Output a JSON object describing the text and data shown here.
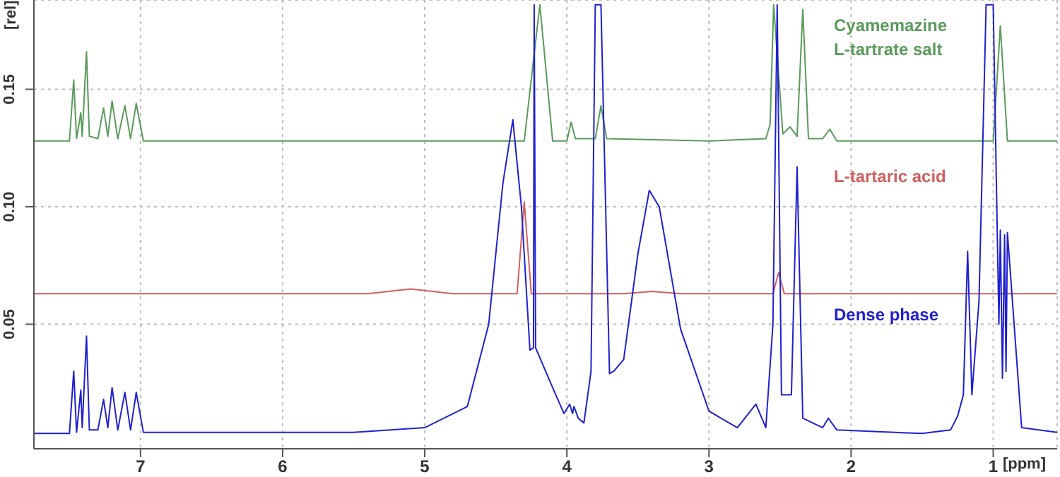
{
  "chart_data": {
    "type": "line",
    "xlabel": "[ppm]",
    "ylabel": "[rel]",
    "xlim": [
      7.75,
      0.55
    ],
    "xticks": [
      7,
      6,
      5,
      4,
      3,
      2,
      1
    ],
    "ylim": [
      -0.003,
      0.188
    ],
    "yticks": [
      {
        "value": 0.05,
        "label": "0.05"
      },
      {
        "value": 0.1,
        "label": "0.10"
      },
      {
        "value": 0.15,
        "label": "0.15"
      }
    ],
    "grid": true,
    "legend": false,
    "marker": "none",
    "line_style": "solid",
    "series": [
      {
        "name": "Cyamemazine\nL-tartrate salt",
        "color": "#5a9a5a",
        "x": [
          7.75,
          7.5,
          7.47,
          7.45,
          7.42,
          7.41,
          7.38,
          7.36,
          7.3,
          7.26,
          7.23,
          7.2,
          7.16,
          7.11,
          7.07,
          7.03,
          6.98,
          5.5,
          4.3,
          4.19,
          4.1,
          4.0,
          3.97,
          3.94,
          3.8,
          3.76,
          3.72,
          3.0,
          2.6,
          2.57,
          2.545,
          2.48,
          2.43,
          2.38,
          2.34,
          2.3,
          2.2,
          2.15,
          2.1,
          1.5,
          1.0,
          0.95,
          0.9,
          0.55
        ],
        "values": [
          0.128,
          0.128,
          0.154,
          0.129,
          0.14,
          0.13,
          0.166,
          0.13,
          0.129,
          0.142,
          0.13,
          0.145,
          0.129,
          0.143,
          0.129,
          0.144,
          0.128,
          0.128,
          0.128,
          0.186,
          0.128,
          0.128,
          0.136,
          0.129,
          0.129,
          0.143,
          0.129,
          0.128,
          0.129,
          0.135,
          0.186,
          0.131,
          0.134,
          0.13,
          0.184,
          0.129,
          0.129,
          0.133,
          0.128,
          0.128,
          0.128,
          0.177,
          0.128,
          0.128
        ]
      },
      {
        "name": "L-tartaric acid",
        "color": "#d06060",
        "x": [
          7.75,
          5.4,
          5.1,
          4.8,
          4.35,
          4.3,
          4.25,
          3.6,
          3.4,
          3.2,
          2.55,
          2.51,
          2.47,
          0.55
        ],
        "values": [
          0.063,
          0.063,
          0.065,
          0.063,
          0.063,
          0.102,
          0.063,
          0.063,
          0.064,
          0.063,
          0.063,
          0.072,
          0.063,
          0.063
        ]
      },
      {
        "name": "Dense phase",
        "color": "#2020d0",
        "x": [
          7.75,
          7.5,
          7.47,
          7.45,
          7.42,
          7.41,
          7.38,
          7.36,
          7.3,
          7.26,
          7.23,
          7.2,
          7.16,
          7.11,
          7.07,
          7.03,
          6.98,
          5.5,
          5.0,
          4.7,
          4.55,
          4.45,
          4.38,
          4.32,
          4.26,
          4.235,
          4.23,
          4.22,
          4.1,
          4.02,
          3.98,
          3.96,
          3.95,
          3.92,
          3.88,
          3.83,
          3.8,
          3.76,
          3.7,
          3.67,
          3.6,
          3.5,
          3.42,
          3.35,
          3.2,
          3.0,
          2.8,
          2.67,
          2.6,
          2.55,
          2.52,
          2.49,
          2.42,
          2.38,
          2.34,
          2.2,
          2.16,
          2.1,
          1.5,
          1.3,
          1.25,
          1.21,
          1.18,
          1.15,
          1.1,
          1.05,
          1.0,
          0.96,
          0.95,
          0.935,
          0.92,
          0.91,
          0.9,
          0.8,
          0.55
        ],
        "values": [
          0.0035,
          0.0035,
          0.03,
          0.004,
          0.022,
          0.006,
          0.045,
          0.005,
          0.005,
          0.018,
          0.006,
          0.023,
          0.005,
          0.021,
          0.005,
          0.021,
          0.004,
          0.004,
          0.006,
          0.015,
          0.05,
          0.11,
          0.137,
          0.1,
          0.039,
          0.04,
          0.186,
          0.04,
          0.023,
          0.012,
          0.016,
          0.012,
          0.015,
          0.01,
          0.008,
          0.03,
          0.186,
          0.186,
          0.029,
          0.03,
          0.035,
          0.08,
          0.107,
          0.1,
          0.048,
          0.013,
          0.006,
          0.016,
          0.006,
          0.05,
          0.186,
          0.02,
          0.02,
          0.117,
          0.01,
          0.006,
          0.01,
          0.005,
          0.0035,
          0.005,
          0.011,
          0.02,
          0.081,
          0.02,
          0.06,
          0.186,
          0.186,
          0.05,
          0.09,
          0.027,
          0.088,
          0.03,
          0.089,
          0.006,
          0.004
        ]
      }
    ]
  }
}
